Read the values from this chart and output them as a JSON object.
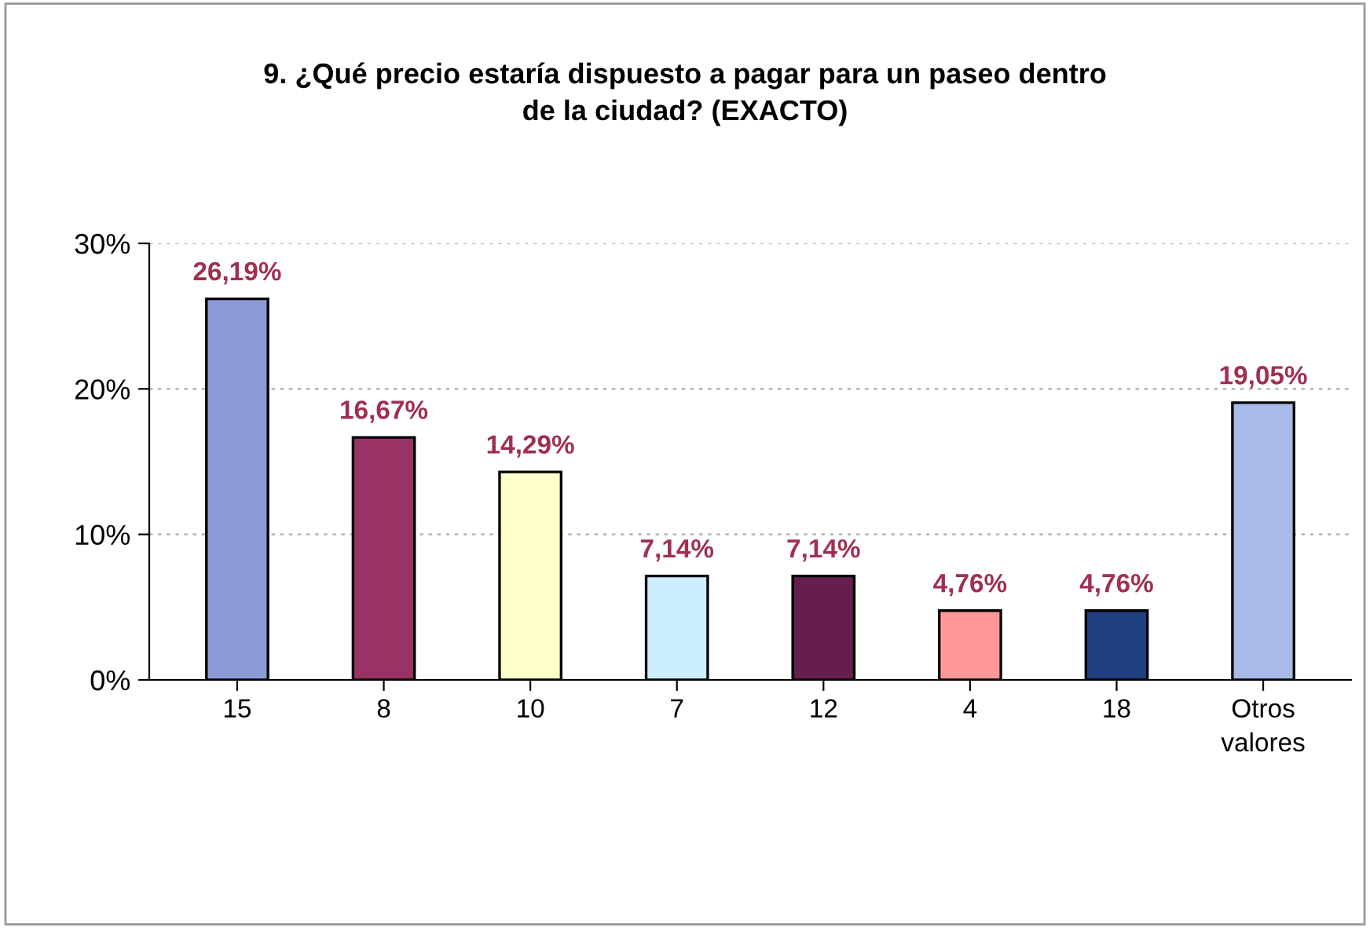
{
  "chart_data": {
    "type": "bar",
    "title": "9. ¿Qué precio estaría dispuesto a pagar para un paseo dentro\nde la ciudad? (EXACTO)",
    "categories": [
      "15",
      "8",
      "10",
      "7",
      "12",
      "4",
      "18",
      "Otros\nvalores"
    ],
    "values": [
      26.19,
      16.67,
      14.29,
      7.14,
      7.14,
      4.76,
      4.76,
      19.05
    ],
    "colors": [
      "#8c9bd6",
      "#993366",
      "#ffffcc",
      "#cceeff",
      "#661f4d",
      "#ff9999",
      "#1f3f80",
      "#a8bbe8"
    ],
    "value_labels": [
      "26,19%",
      "16,67%",
      "14,29%",
      "7,14%",
      "7,14%",
      "4,76%",
      "4,76%",
      "19,05%"
    ],
    "ylim": [
      0,
      30
    ],
    "yticks": [
      {
        "value": 0,
        "label": "0%"
      },
      {
        "value": 10,
        "label": "10%"
      },
      {
        "value": 20,
        "label": "20%"
      },
      {
        "value": 30,
        "label": "30%"
      }
    ],
    "grid": "y"
  }
}
